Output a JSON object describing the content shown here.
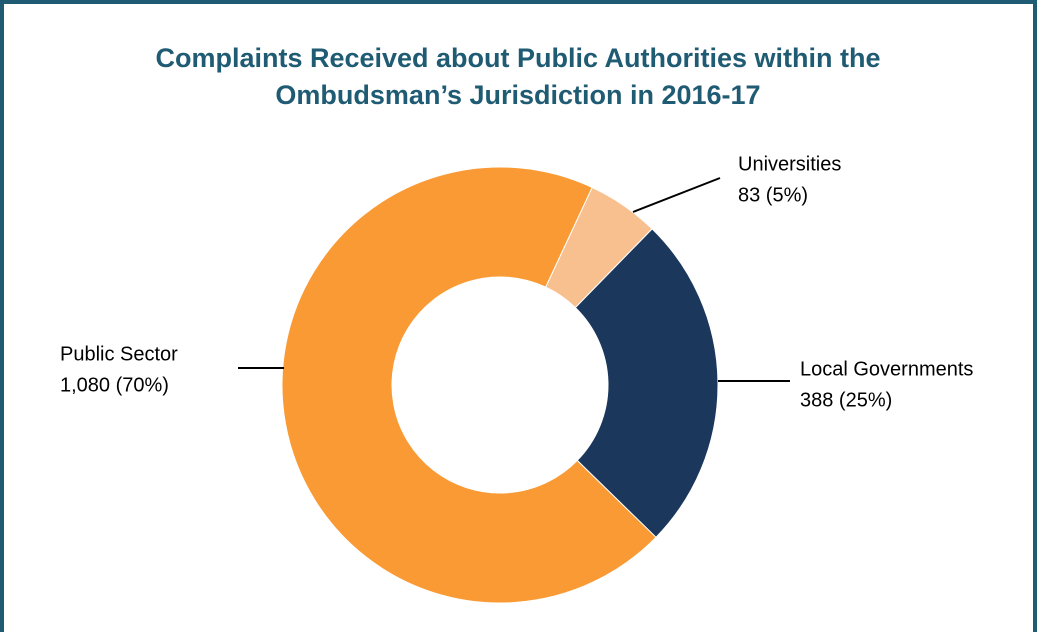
{
  "chart_data": {
    "type": "donut",
    "title": [
      "Complaints Received about Public Authorities within the",
      "Ombudsman’s Jurisdiction in 2016-17"
    ],
    "categories": [
      "Universities",
      "Local Governments",
      "Public Sector"
    ],
    "values": [
      83,
      388,
      1080
    ],
    "value_labels": [
      "83 (5%)",
      "388 (25%)",
      "1,080 (70%)"
    ],
    "colors": [
      "#f9c08f",
      "#1b375c",
      "#f99a34"
    ]
  }
}
